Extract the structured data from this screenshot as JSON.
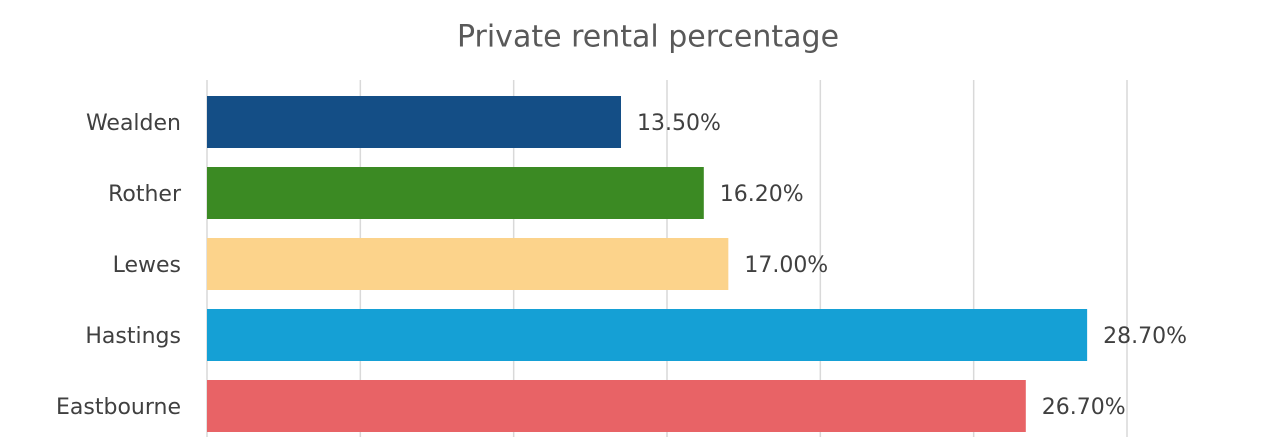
{
  "chart_data": {
    "type": "barh",
    "title": "Private rental percentage",
    "categories": [
      "Wealden",
      "Rother",
      "Lewes",
      "Hastings",
      "Eastbourne"
    ],
    "values": [
      13.5,
      16.2,
      17.0,
      28.7,
      26.7
    ],
    "value_labels": [
      "13.50%",
      "16.20%",
      "17.00%",
      "28.70%",
      "26.70%"
    ],
    "colors": [
      "#144e86",
      "#3b8a23",
      "#fcd38b",
      "#15a0d5",
      "#e86366"
    ],
    "xlim": [
      0,
      30
    ],
    "xticks": [
      0,
      5,
      10,
      15,
      20,
      25,
      30
    ],
    "grid": true
  }
}
